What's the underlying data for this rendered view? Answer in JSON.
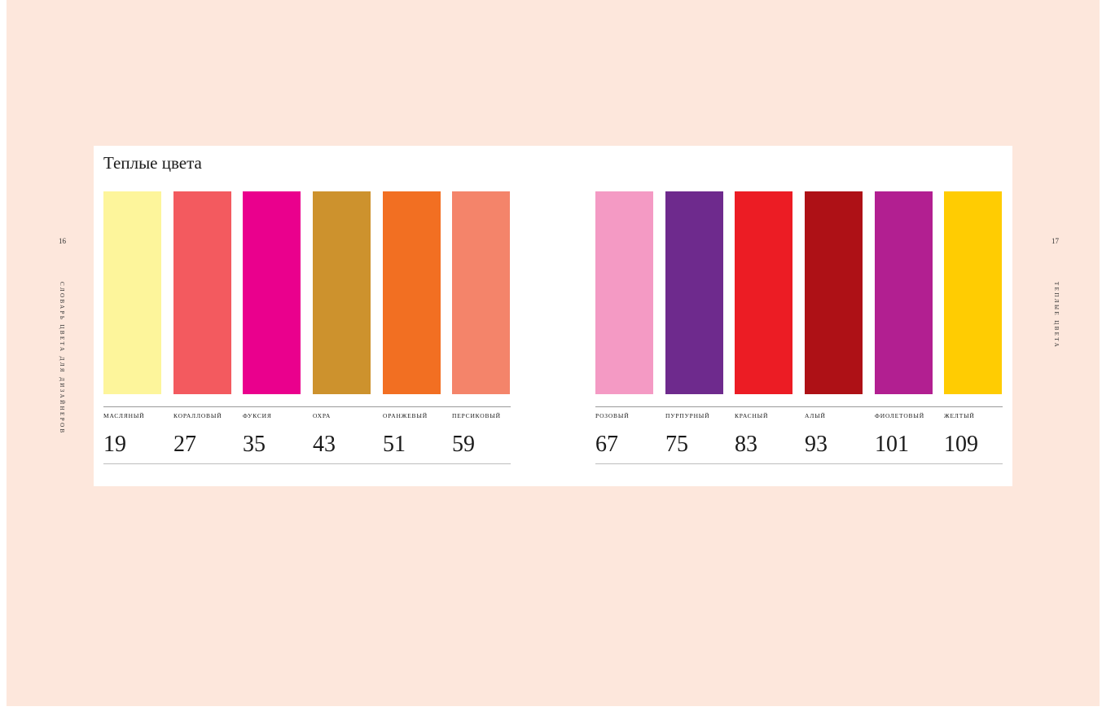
{
  "spread": {
    "left_page_number": "16",
    "right_page_number": "17",
    "left_running_head": "СЛОВАРЬ ЦВЕТА ДЛЯ ДИЗАЙНЕРОВ",
    "right_running_head": "ТЕПЛЫЕ ЦВЕТА",
    "background_color": "#fde7dc"
  },
  "section": {
    "title": "Теплые цвета"
  },
  "colors_left": [
    {
      "name": "МАСЛЯНЫЙ",
      "page": "19",
      "color": "#fdf59b"
    },
    {
      "name": "КОРАЛЛОВЫЙ",
      "page": "27",
      "color": "#f35a5f"
    },
    {
      "name": "ФУКСИЯ",
      "page": "35",
      "color": "#ea008d"
    },
    {
      "name": "ОХРА",
      "page": "43",
      "color": "#cd922d"
    },
    {
      "name": "ОРАНЖЕВЫЙ",
      "page": "51",
      "color": "#f26f22"
    },
    {
      "name": "ПЕРСИКОВЫЙ",
      "page": "59",
      "color": "#f4846a"
    }
  ],
  "colors_right": [
    {
      "name": "РОЗОВЫЙ",
      "page": "67",
      "color": "#f49ac4"
    },
    {
      "name": "ПУРПУРНЫЙ",
      "page": "75",
      "color": "#6e2a8d"
    },
    {
      "name": "КРАСНЫЙ",
      "page": "83",
      "color": "#ec1c24"
    },
    {
      "name": "АЛЫЙ",
      "page": "93",
      "color": "#ae1116"
    },
    {
      "name": "ФИОЛЕТОВЫЙ",
      "page": "101",
      "color": "#b21f91"
    },
    {
      "name": "ЖЕЛТЫЙ",
      "page": "109",
      "color": "#ffcc02"
    }
  ]
}
